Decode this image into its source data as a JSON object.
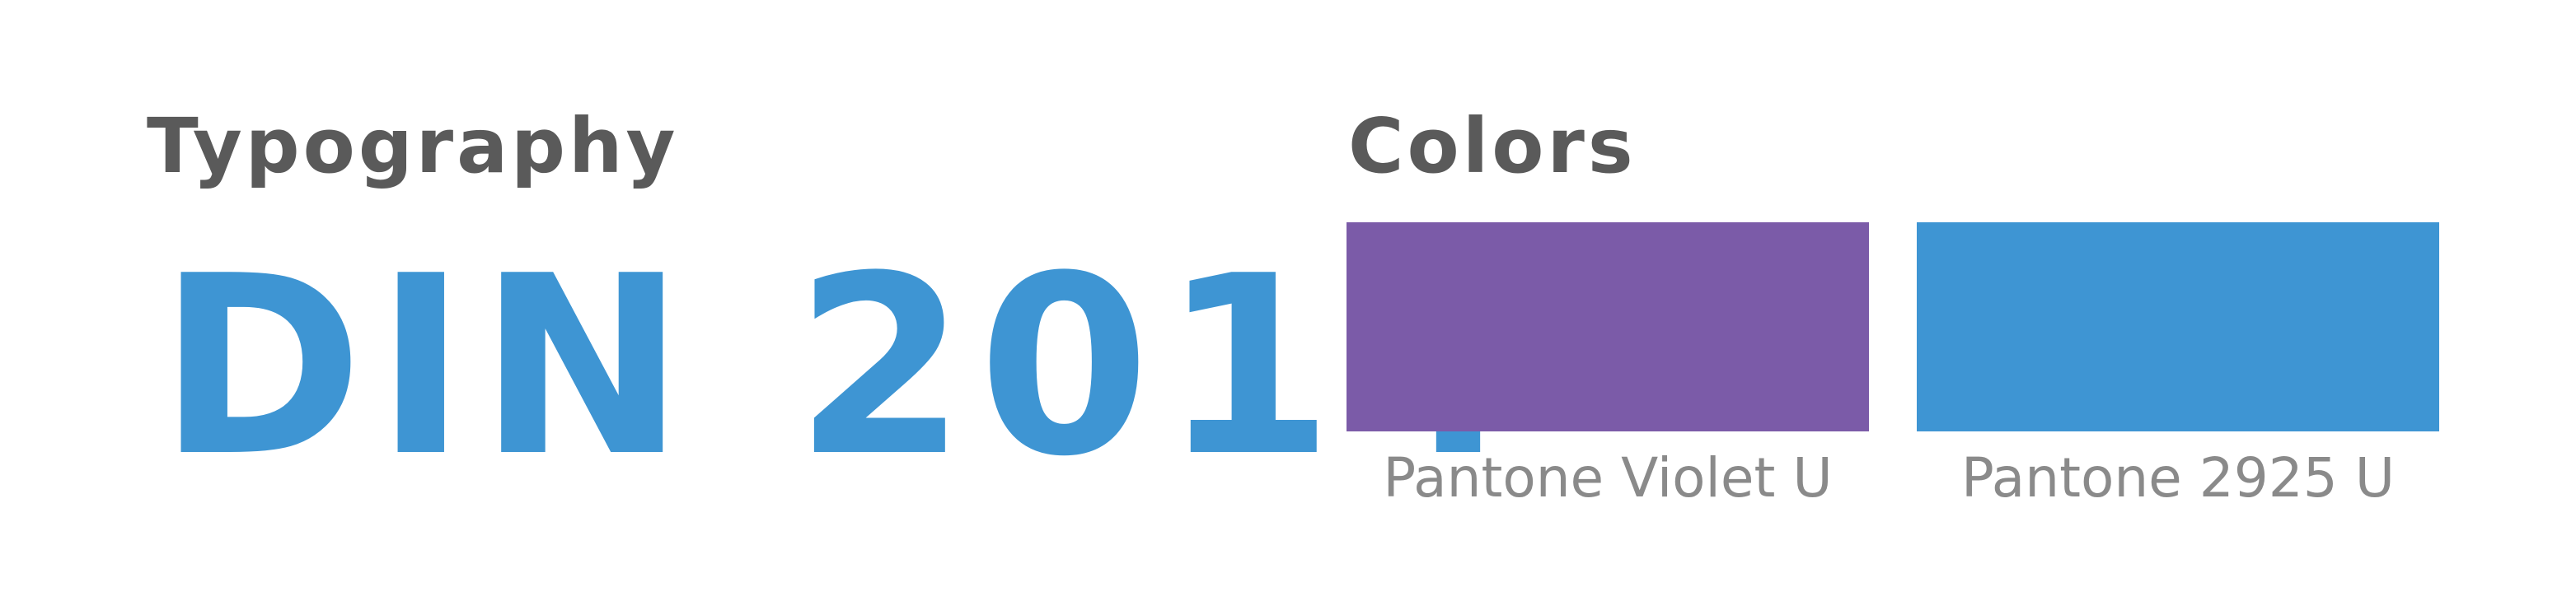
{
  "typography": {
    "heading": "Typography",
    "font_name": "DIN 2014"
  },
  "colors": {
    "heading": "Colors",
    "swatches": [
      {
        "name": "Pantone Violet U",
        "hex": "#7b5ba8"
      },
      {
        "name": "Pantone 2925 U",
        "hex": "#3e95d3"
      }
    ]
  },
  "palette": {
    "heading_text": "#5a5a5a",
    "font_sample_text": "#3e95d3",
    "swatch_label_text": "#8a8a8a",
    "background": "#ffffff"
  }
}
